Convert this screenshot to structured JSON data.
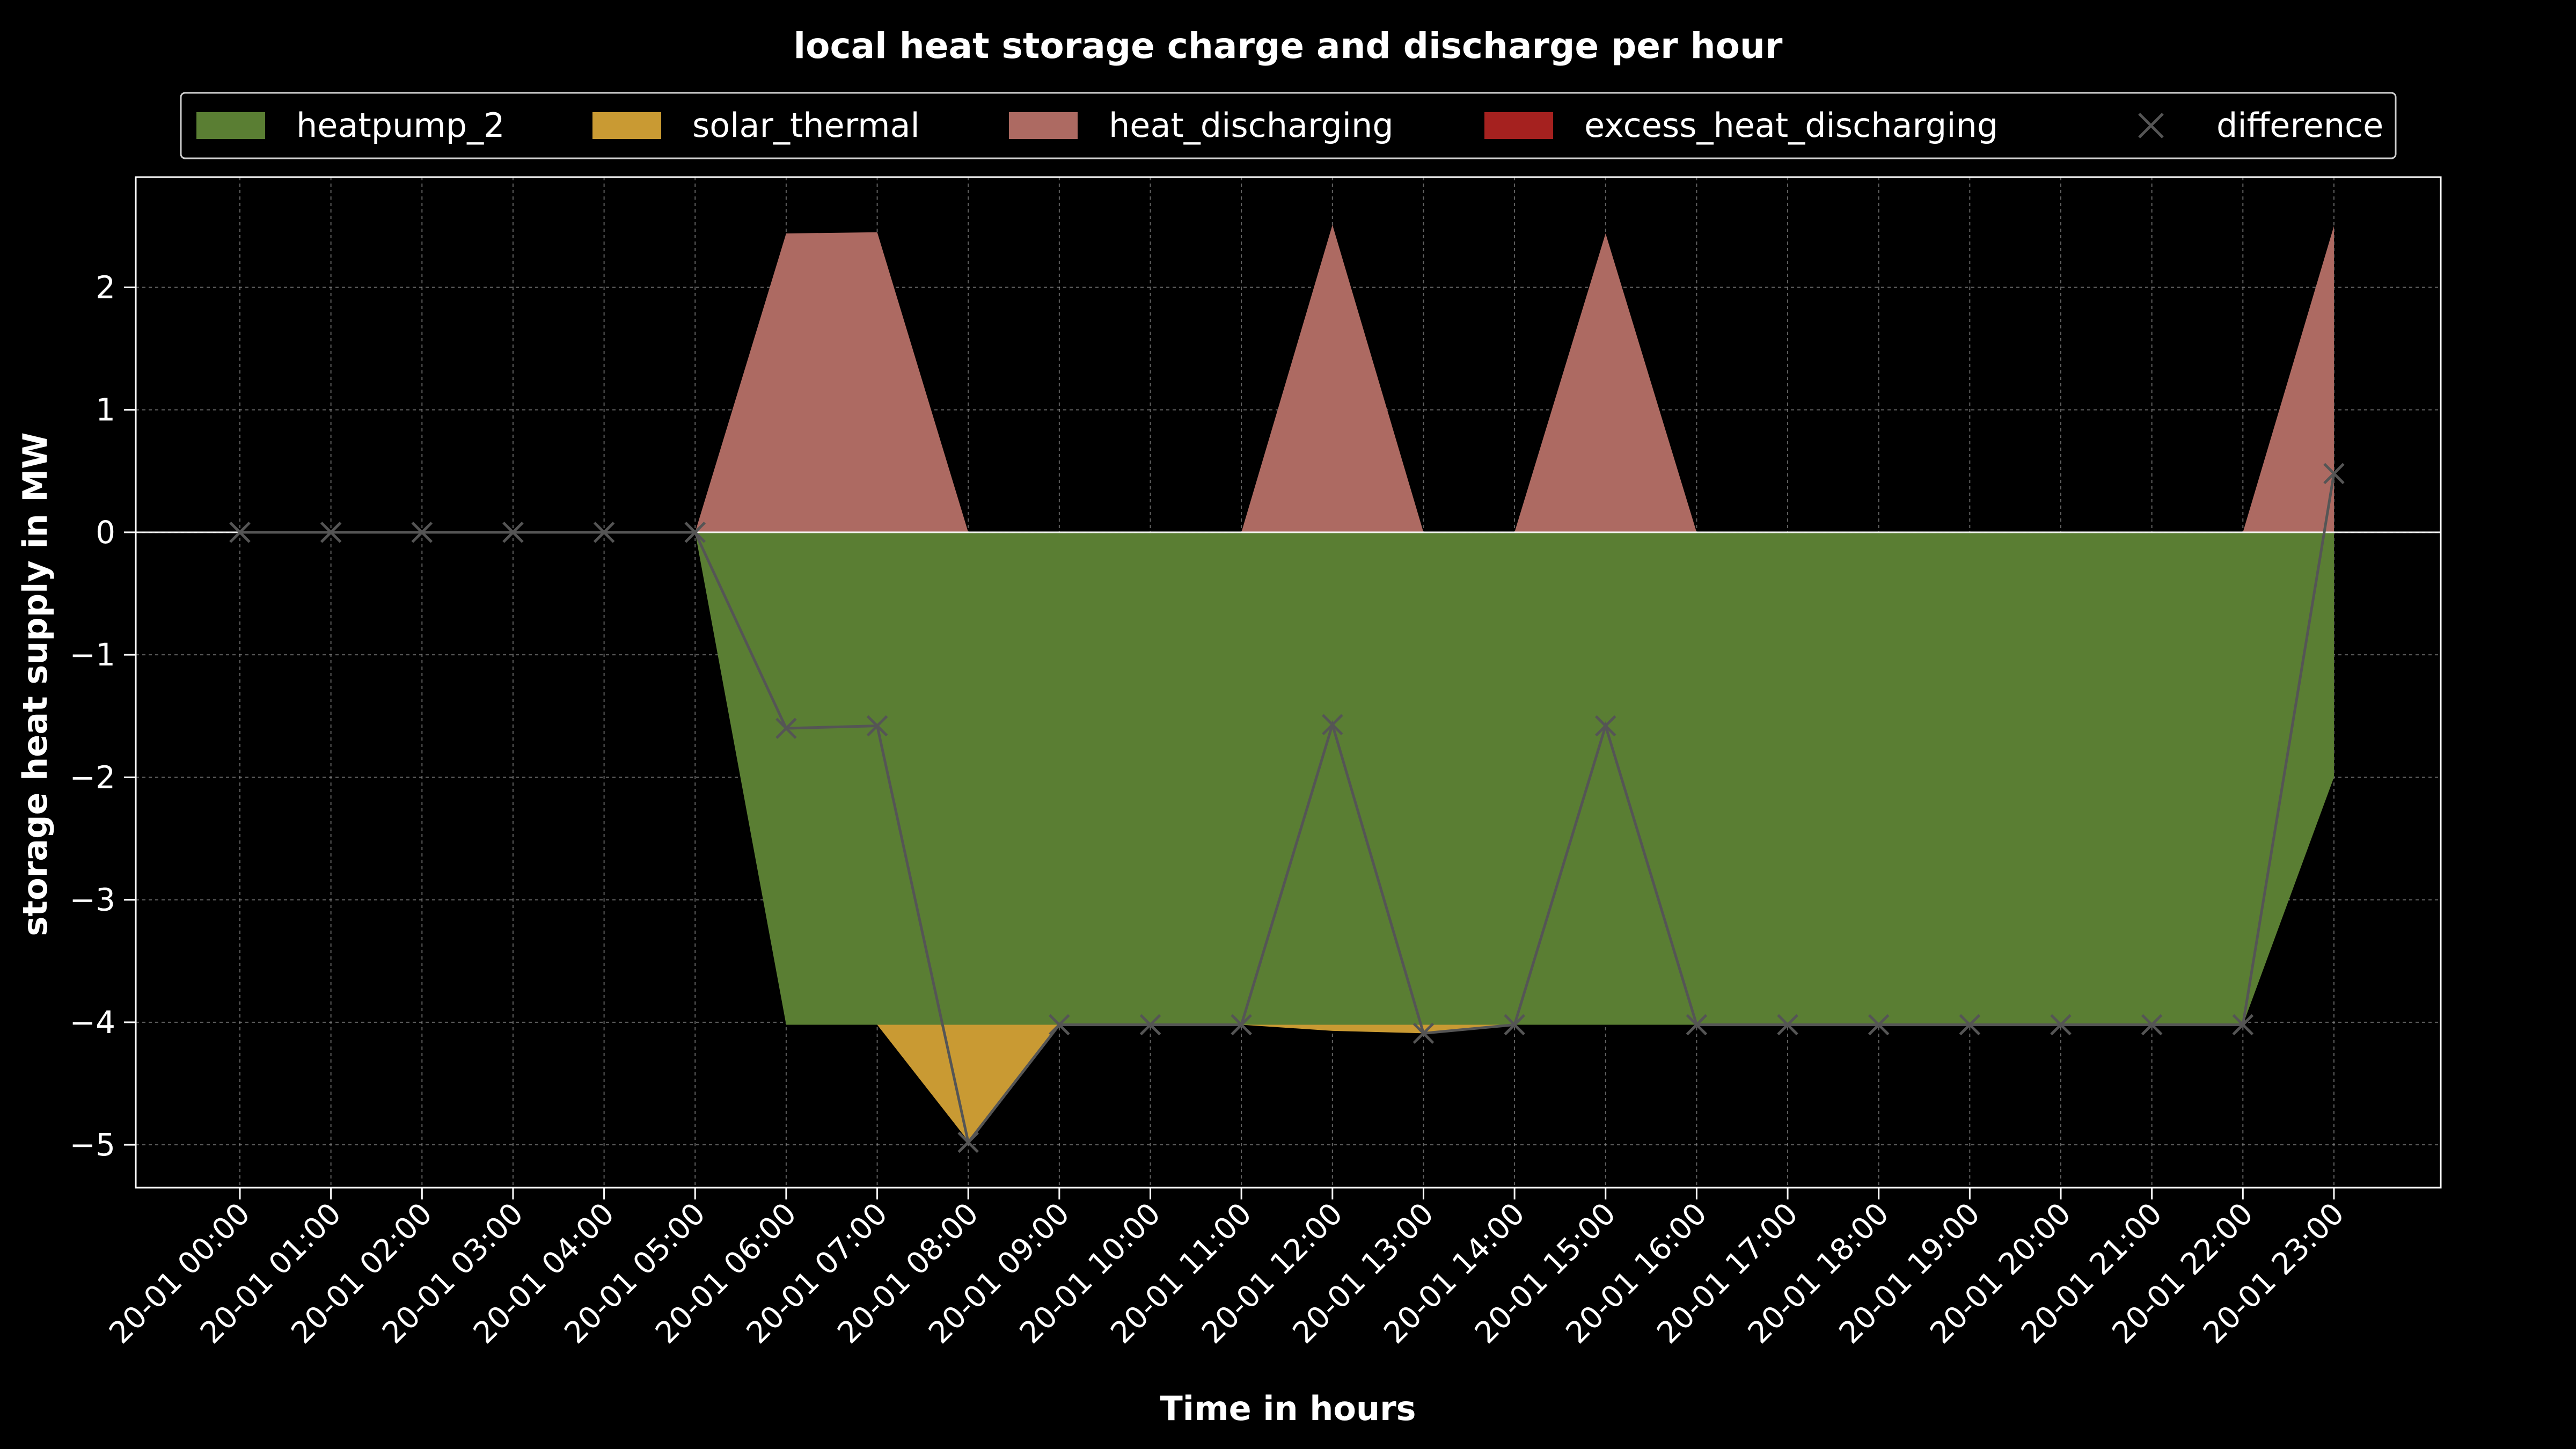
{
  "chart_data": {
    "type": "area",
    "title": "local heat storage charge and discharge per hour",
    "xlabel": "Time in hours",
    "ylabel": "storage heat supply in MW",
    "categories": [
      "20-01 00:00",
      "20-01 01:00",
      "20-01 02:00",
      "20-01 03:00",
      "20-01 04:00",
      "20-01 05:00",
      "20-01 06:00",
      "20-01 07:00",
      "20-01 08:00",
      "20-01 09:00",
      "20-01 10:00",
      "20-01 11:00",
      "20-01 12:00",
      "20-01 13:00",
      "20-01 14:00",
      "20-01 15:00",
      "20-01 16:00",
      "20-01 17:00",
      "20-01 18:00",
      "20-01 19:00",
      "20-01 20:00",
      "20-01 21:00",
      "20-01 22:00",
      "20-01 23:00"
    ],
    "yticks": [
      2,
      1,
      0,
      -1,
      -2,
      -3,
      -4,
      -5
    ],
    "ytick_labels": [
      "2",
      "1",
      "0",
      "−1",
      "−2",
      "−3",
      "−4",
      "−5"
    ],
    "ylim": [
      -5.35,
      2.9
    ],
    "grid": true,
    "legend_position": "top",
    "series": [
      {
        "name": "heatpump_2",
        "kind": "stacked-negative",
        "color": "#5a7e33",
        "values": [
          0,
          0,
          0,
          0,
          0,
          0,
          -4.02,
          -4.02,
          -4.02,
          -4.02,
          -4.02,
          -4.02,
          -4.02,
          -4.02,
          -4.02,
          -4.02,
          -4.02,
          -4.02,
          -4.02,
          -4.02,
          -4.02,
          -4.02,
          -4.02,
          -2.0
        ]
      },
      {
        "name": "solar_thermal",
        "kind": "stacked-negative",
        "color": "#c99a33",
        "values": [
          0,
          0,
          0,
          0,
          0,
          0,
          0,
          0,
          -0.95,
          0,
          0,
          0,
          -0.05,
          -0.07,
          0,
          0,
          0,
          0,
          0,
          0,
          0,
          0,
          0,
          0
        ]
      },
      {
        "name": "heat_discharging",
        "kind": "stacked-positive",
        "color": "#ad6a62",
        "values": [
          0,
          0,
          0,
          0,
          0,
          0,
          2.44,
          2.45,
          0,
          0,
          0,
          0,
          2.51,
          0,
          0,
          2.44,
          0,
          0,
          0,
          0,
          0,
          0,
          0,
          2.5
        ]
      },
      {
        "name": "excess_heat_discharging",
        "kind": "stacked-positive",
        "color": "#a5211f",
        "values": [
          0,
          0,
          0,
          0,
          0,
          0,
          0,
          0,
          0,
          0,
          0,
          0,
          0,
          0,
          0,
          0,
          0,
          0,
          0,
          0,
          0,
          0,
          0,
          0
        ]
      },
      {
        "name": "difference",
        "kind": "line-markers",
        "color": "#555555",
        "values": [
          0,
          0,
          0,
          0,
          0,
          0,
          -1.6,
          -1.58,
          -4.98,
          -4.02,
          -4.02,
          -4.02,
          -1.57,
          -4.09,
          -4.02,
          -1.58,
          -4.02,
          -4.02,
          -4.02,
          -4.02,
          -4.02,
          -4.02,
          -4.02,
          0.48
        ]
      }
    ]
  }
}
